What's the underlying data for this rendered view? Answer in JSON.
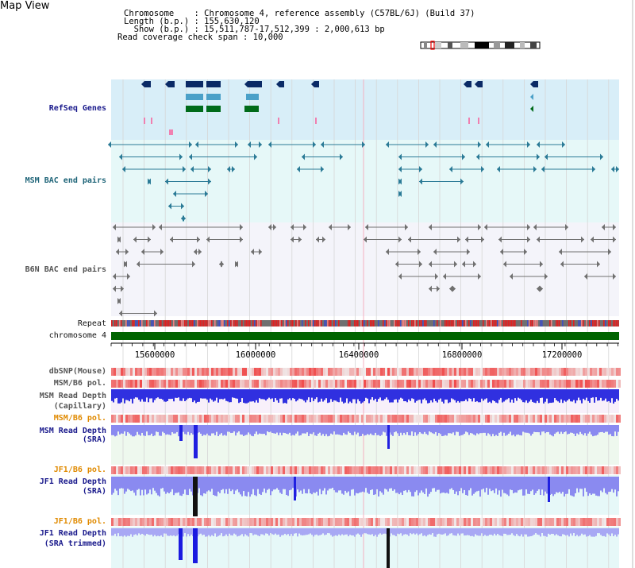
{
  "view": {
    "title": "Map View"
  },
  "info": {
    "chromosome_line": "Chromosome    : Chromosome 4, reference assembly (C57BL/6J) (Build 37)",
    "length_line": "Length (b.p.) : 155,630,120",
    "show_line": "  Show (b.p.) : 15,511,787-17,512,399 : 2,000,613 bp",
    "coverage_line": "Read coverage check span : 10,000"
  },
  "tracks": {
    "refseq": "RefSeq Genes",
    "msm_bac": "MSM BAC end pairs",
    "b6n_bac": "B6N BAC end pairs",
    "repeat": "Repeat",
    "chrom": "chromosome 4",
    "dbsnp": "dbSNP(Mouse)",
    "msm_b6_pol": "MSM/B6 pol.",
    "msm_depth_cap_1": "MSM Read Depth",
    "msm_depth_cap_2": "(Capillary)",
    "msm_b6_pol2": "MSM/B6 pol.",
    "msm_depth_sra_1": "MSM Read Depth",
    "msm_depth_sra_2": "(SRA)",
    "jf1_b6_pol": "JF1/B6 pol.",
    "jf1_depth_sra_1": "JF1 Read Depth",
    "jf1_depth_sra_2": "(SRA)",
    "jf1_b6_pol2": "JF1/B6 pol.",
    "jf1_depth_trim_1": "JF1 Read Depth",
    "jf1_depth_trim_2": "(SRA trimmed)"
  },
  "axis": {
    "ticks": [
      "15600000",
      "16000000",
      "16400000",
      "16800000",
      "17200000"
    ]
  },
  "colors": {
    "refseq_bg": "#d8eef8",
    "bac_bg": "#e6f8f8",
    "b6n_bg": "#f4f4fa",
    "gene_dark": "#0a2a66",
    "gene_mid": "#4aa0c8",
    "gene_green": "#006b1a",
    "msm_feature": "#2a7a96",
    "b6n_feature": "#707070",
    "chrom_bar": "#006400",
    "depth_blue": "#2020e0",
    "depth_light": "#8a8af0",
    "pol_red": "#f07070"
  }
}
